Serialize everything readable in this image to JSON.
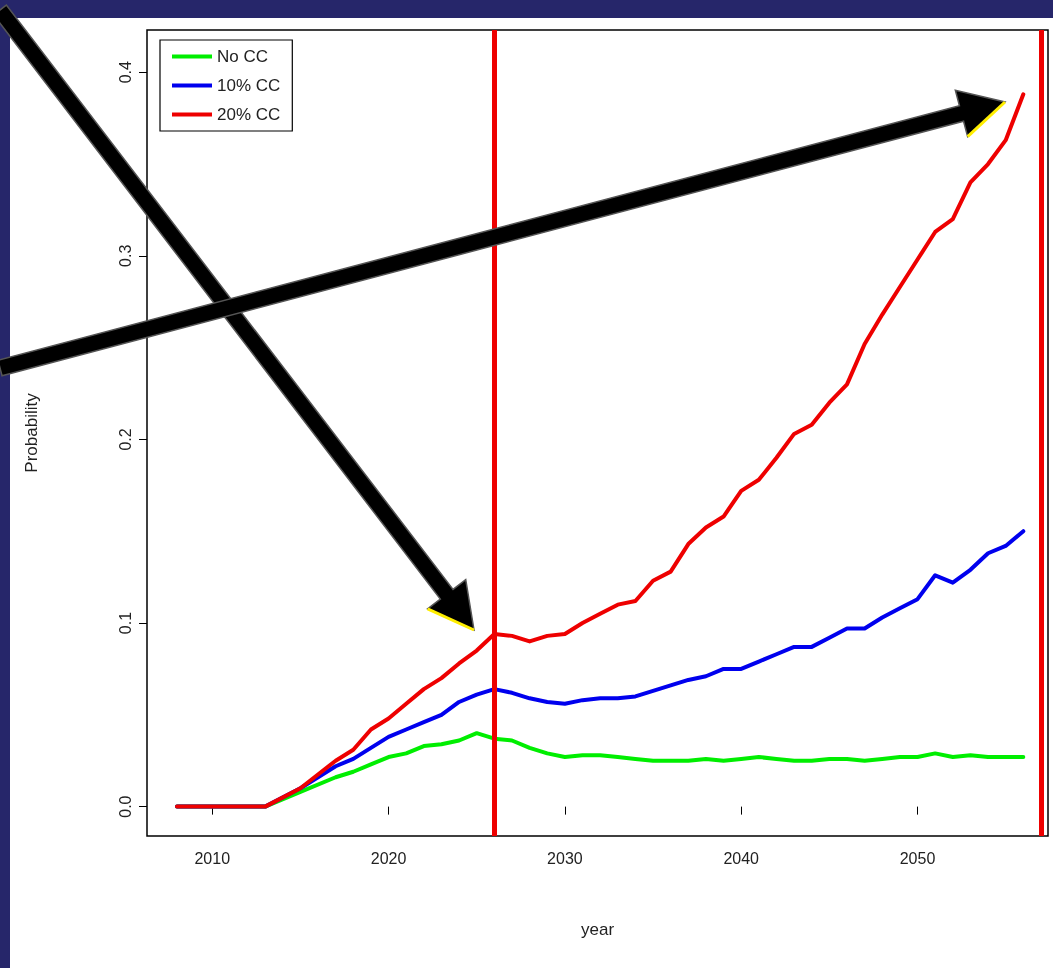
{
  "chart_data": {
    "type": "line",
    "xlabel": "year",
    "ylabel": "Probability",
    "x": [
      2008,
      2013,
      2015,
      2017,
      2018,
      2019,
      2020,
      2021,
      2022,
      2023,
      2024,
      2025,
      2026,
      2027,
      2028,
      2029,
      2030,
      2031,
      2032,
      2033,
      2034,
      2035,
      2036,
      2037,
      2038,
      2039,
      2040,
      2041,
      2042,
      2043,
      2044,
      2045,
      2046,
      2047,
      2048,
      2049,
      2050,
      2051,
      2052,
      2053,
      2054,
      2055,
      2056
    ],
    "series": [
      {
        "name": "No CC",
        "color": "#00ee00",
        "values": [
          0,
          0,
          0.008,
          0.016,
          0.019,
          0.023,
          0.027,
          0.029,
          0.033,
          0.034,
          0.036,
          0.04,
          0.037,
          0.036,
          0.032,
          0.029,
          0.027,
          0.028,
          0.028,
          0.027,
          0.026,
          0.025,
          0.025,
          0.025,
          0.026,
          0.025,
          0.026,
          0.027,
          0.026,
          0.025,
          0.025,
          0.026,
          0.026,
          0.025,
          0.026,
          0.027,
          0.027,
          0.029,
          0.027,
          0.028,
          0.027,
          0.027,
          0.027
        ]
      },
      {
        "name": "10% CC",
        "color": "#0000ee",
        "values": [
          0,
          0,
          0.01,
          0.022,
          0.026,
          0.032,
          0.038,
          0.042,
          0.046,
          0.05,
          0.057,
          0.061,
          0.064,
          0.062,
          0.059,
          0.057,
          0.056,
          0.058,
          0.059,
          0.059,
          0.06,
          0.063,
          0.066,
          0.069,
          0.071,
          0.075,
          0.075,
          0.079,
          0.083,
          0.087,
          0.087,
          0.092,
          0.097,
          0.097,
          0.103,
          0.108,
          0.113,
          0.126,
          0.122,
          0.129,
          0.138,
          0.142,
          0.15
        ]
      },
      {
        "name": "20% CC",
        "color": "#ee0000",
        "values": [
          0,
          0,
          0.01,
          0.025,
          0.031,
          0.042,
          0.048,
          0.056,
          0.064,
          0.07,
          0.078,
          0.085,
          0.094,
          0.093,
          0.09,
          0.093,
          0.094,
          0.1,
          0.105,
          0.11,
          0.112,
          0.123,
          0.128,
          0.143,
          0.152,
          0.158,
          0.172,
          0.178,
          0.19,
          0.203,
          0.208,
          0.22,
          0.23,
          0.252,
          0.268,
          0.283,
          0.298,
          0.313,
          0.32,
          0.34,
          0.35,
          0.363,
          0.388
        ]
      }
    ],
    "xlim": [
      2006.3,
      2057.4
    ],
    "xticks": [
      2010,
      2020,
      2030,
      2040,
      2050
    ],
    "ylim": [
      -0.016,
      0.423
    ],
    "yticks": [
      {
        "value": 0,
        "label": "0.0"
      },
      0.1,
      0.2,
      0.3,
      0.4
    ],
    "ref_lines": [
      {
        "axis": "x",
        "value": 2026,
        "color": "#ee0000"
      },
      {
        "axis": "x",
        "value": 2057,
        "color": "#ee0000"
      }
    ],
    "legend": "top left",
    "grid": false,
    "marker": "none",
    "line_style": "solid"
  }
}
